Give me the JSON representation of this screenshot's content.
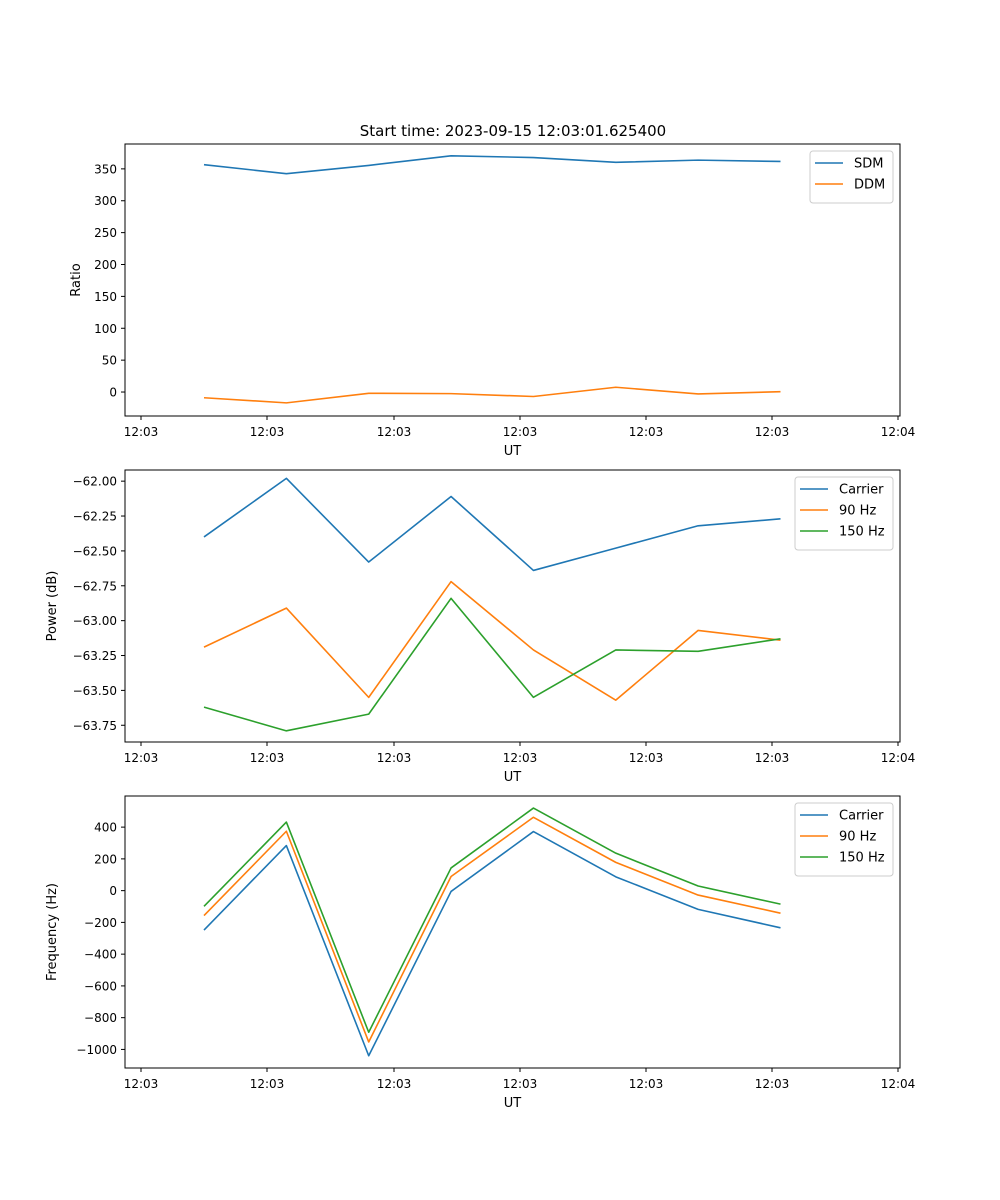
{
  "figure": {
    "title": "Start time: 2023-09-15 12:03:01.625400"
  },
  "chart_data": [
    {
      "type": "line",
      "title": "Start time: 2023-09-15 12:03:01.625400",
      "xlabel": "UT",
      "ylabel": "Ratio",
      "x": [
        1,
        2,
        3,
        4,
        5,
        6,
        7,
        8
      ],
      "x_tick_labels": [
        "12:03",
        "12:03",
        "12:03",
        "12:03",
        "12:03",
        "12:03",
        "12:04"
      ],
      "y_ticks": [
        0,
        50,
        100,
        150,
        200,
        250,
        300,
        350
      ],
      "y_tick_labels": [
        "0",
        "50",
        "100",
        "150",
        "200",
        "250",
        "300",
        "350"
      ],
      "ylim": [
        -37.6,
        389
      ],
      "legend": "top-right",
      "series": [
        {
          "name": "SDM",
          "color": "#1f77b4",
          "values": [
            356.5,
            342.5,
            355.4,
            370.5,
            367.8,
            360.3,
            363.7,
            361.6
          ]
        },
        {
          "name": "DDM",
          "color": "#ff7f0e",
          "values": [
            -9.0,
            -17.0,
            -2.0,
            -2.5,
            -7.0,
            7.5,
            -3.0,
            0.5
          ]
        }
      ]
    },
    {
      "type": "line",
      "title": "",
      "xlabel": "UT",
      "ylabel": "Power (dB)",
      "x": [
        1,
        2,
        3,
        4,
        5,
        6,
        7,
        8
      ],
      "x_tick_labels": [
        "12:03",
        "12:03",
        "12:03",
        "12:03",
        "12:03",
        "12:03",
        "12:04"
      ],
      "y_ticks": [
        -62.0,
        -62.25,
        -62.5,
        -62.75,
        -63.0,
        -63.25,
        -63.5,
        -63.75
      ],
      "y_tick_labels": [
        "−62.00",
        "−62.25",
        "−62.50",
        "−62.75",
        "−63.00",
        "−63.25",
        "−63.50",
        "−63.75"
      ],
      "ylim": [
        -63.87,
        -61.92
      ],
      "legend": "top-right",
      "series": [
        {
          "name": "Carrier",
          "color": "#1f77b4",
          "values": [
            -62.4,
            -61.98,
            -62.58,
            -62.11,
            -62.64,
            -62.48,
            -62.32,
            -62.27
          ]
        },
        {
          "name": "90 Hz",
          "color": "#ff7f0e",
          "values": [
            -63.19,
            -62.91,
            -63.55,
            -62.72,
            -63.21,
            -63.57,
            -63.07,
            -63.14
          ]
        },
        {
          "name": "150 Hz",
          "color": "#2ca02c",
          "values": [
            -63.62,
            -63.79,
            -63.67,
            -62.84,
            -63.55,
            -63.21,
            -63.22,
            -63.13
          ]
        }
      ]
    },
    {
      "type": "line",
      "title": "",
      "xlabel": "UT",
      "ylabel": "Frequency (Hz)",
      "x": [
        1,
        2,
        3,
        4,
        5,
        6,
        7,
        8
      ],
      "x_tick_labels": [
        "12:03",
        "12:03",
        "12:03",
        "12:03",
        "12:03",
        "12:03",
        "12:04"
      ],
      "y_ticks": [
        400,
        200,
        0,
        -200,
        -400,
        -600,
        -800,
        -1000
      ],
      "y_tick_labels": [
        "400",
        "200",
        "0",
        "−200",
        "−400",
        "−600",
        "−800",
        "−1000"
      ],
      "ylim": [
        -1117,
        596
      ],
      "legend": "top-right",
      "series": [
        {
          "name": "Carrier",
          "color": "#1f77b4",
          "values": [
            -248,
            284,
            -1040,
            -5,
            372,
            87,
            -118,
            -234
          ]
        },
        {
          "name": "90 Hz",
          "color": "#ff7f0e",
          "values": [
            -157,
            374,
            -953,
            89,
            462,
            178,
            -28,
            -142
          ]
        },
        {
          "name": "150 Hz",
          "color": "#2ca02c",
          "values": [
            -99,
            432,
            -892,
            143,
            520,
            236,
            29,
            -85
          ]
        }
      ]
    }
  ]
}
